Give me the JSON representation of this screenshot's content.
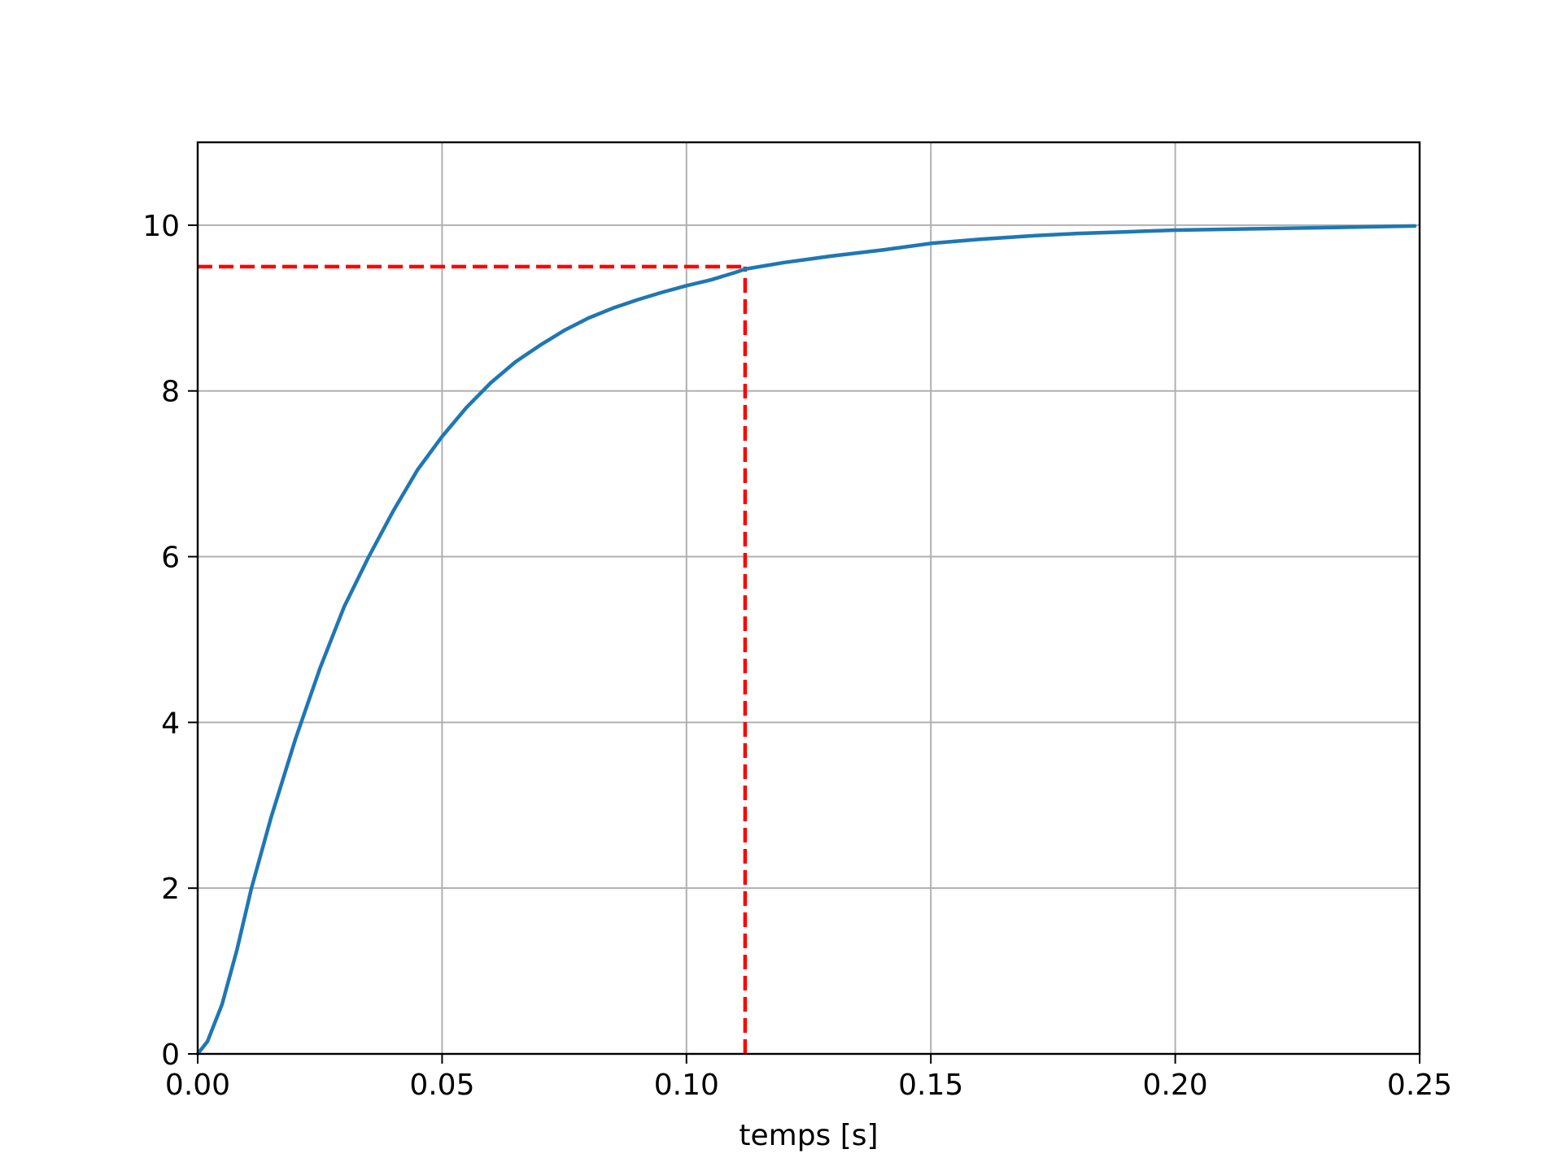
{
  "chart_data": {
    "type": "line",
    "title": "",
    "xlabel": "temps [s]",
    "ylabel": "",
    "xlim": [
      0,
      0.25
    ],
    "ylim": [
      0,
      11
    ],
    "grid": true,
    "legend": "none",
    "x_ticks": [
      {
        "value": 0,
        "label": "0.00"
      },
      {
        "value": 0.05,
        "label": "0.05"
      },
      {
        "value": 0.1,
        "label": "0.10"
      },
      {
        "value": 0.15,
        "label": "0.15"
      },
      {
        "value": 0.2,
        "label": "0.20"
      },
      {
        "value": 0.25,
        "label": "0.25"
      }
    ],
    "y_ticks": [
      {
        "value": 0,
        "label": "0"
      },
      {
        "value": 2,
        "label": "2"
      },
      {
        "value": 4,
        "label": "4"
      },
      {
        "value": 6,
        "label": "6"
      },
      {
        "value": 8,
        "label": "8"
      },
      {
        "value": 10,
        "label": "10"
      }
    ],
    "series": [
      {
        "color": "#1f77b4",
        "style": "solid",
        "x": [
          0,
          0.002,
          0.005,
          0.008,
          0.011,
          0.015,
          0.02,
          0.025,
          0.03,
          0.035,
          0.04,
          0.045,
          0.05,
          0.055,
          0.06,
          0.065,
          0.07,
          0.075,
          0.08,
          0.085,
          0.09,
          0.095,
          0.1,
          0.105,
          0.11,
          0.112,
          0.12,
          0.13,
          0.14,
          0.15,
          0.16,
          0.17,
          0.18,
          0.19,
          0.2,
          0.21,
          0.22,
          0.23,
          0.24,
          0.249
        ],
        "values": [
          0,
          0.15,
          0.6,
          1.25,
          2.0,
          2.85,
          3.8,
          4.65,
          5.4,
          6.0,
          6.55,
          7.05,
          7.45,
          7.8,
          8.1,
          8.35,
          8.55,
          8.73,
          8.88,
          9.0,
          9.1,
          9.19,
          9.27,
          9.34,
          9.43,
          9.47,
          9.55,
          9.63,
          9.7,
          9.78,
          9.83,
          9.87,
          9.9,
          9.92,
          9.94,
          9.95,
          9.96,
          9.97,
          9.98,
          9.99
        ]
      }
    ],
    "reference_lines": [
      {
        "orientation": "horizontal",
        "value": 9.5,
        "from": 0,
        "to": 0.112,
        "color": "#ff0000",
        "style": "dashed"
      },
      {
        "orientation": "vertical",
        "value": 0.112,
        "from": 0,
        "to": 9.5,
        "color": "#ff0000",
        "style": "dashed"
      }
    ],
    "colors": {
      "grid": "#b0b0b0",
      "axes": "#000000"
    }
  }
}
